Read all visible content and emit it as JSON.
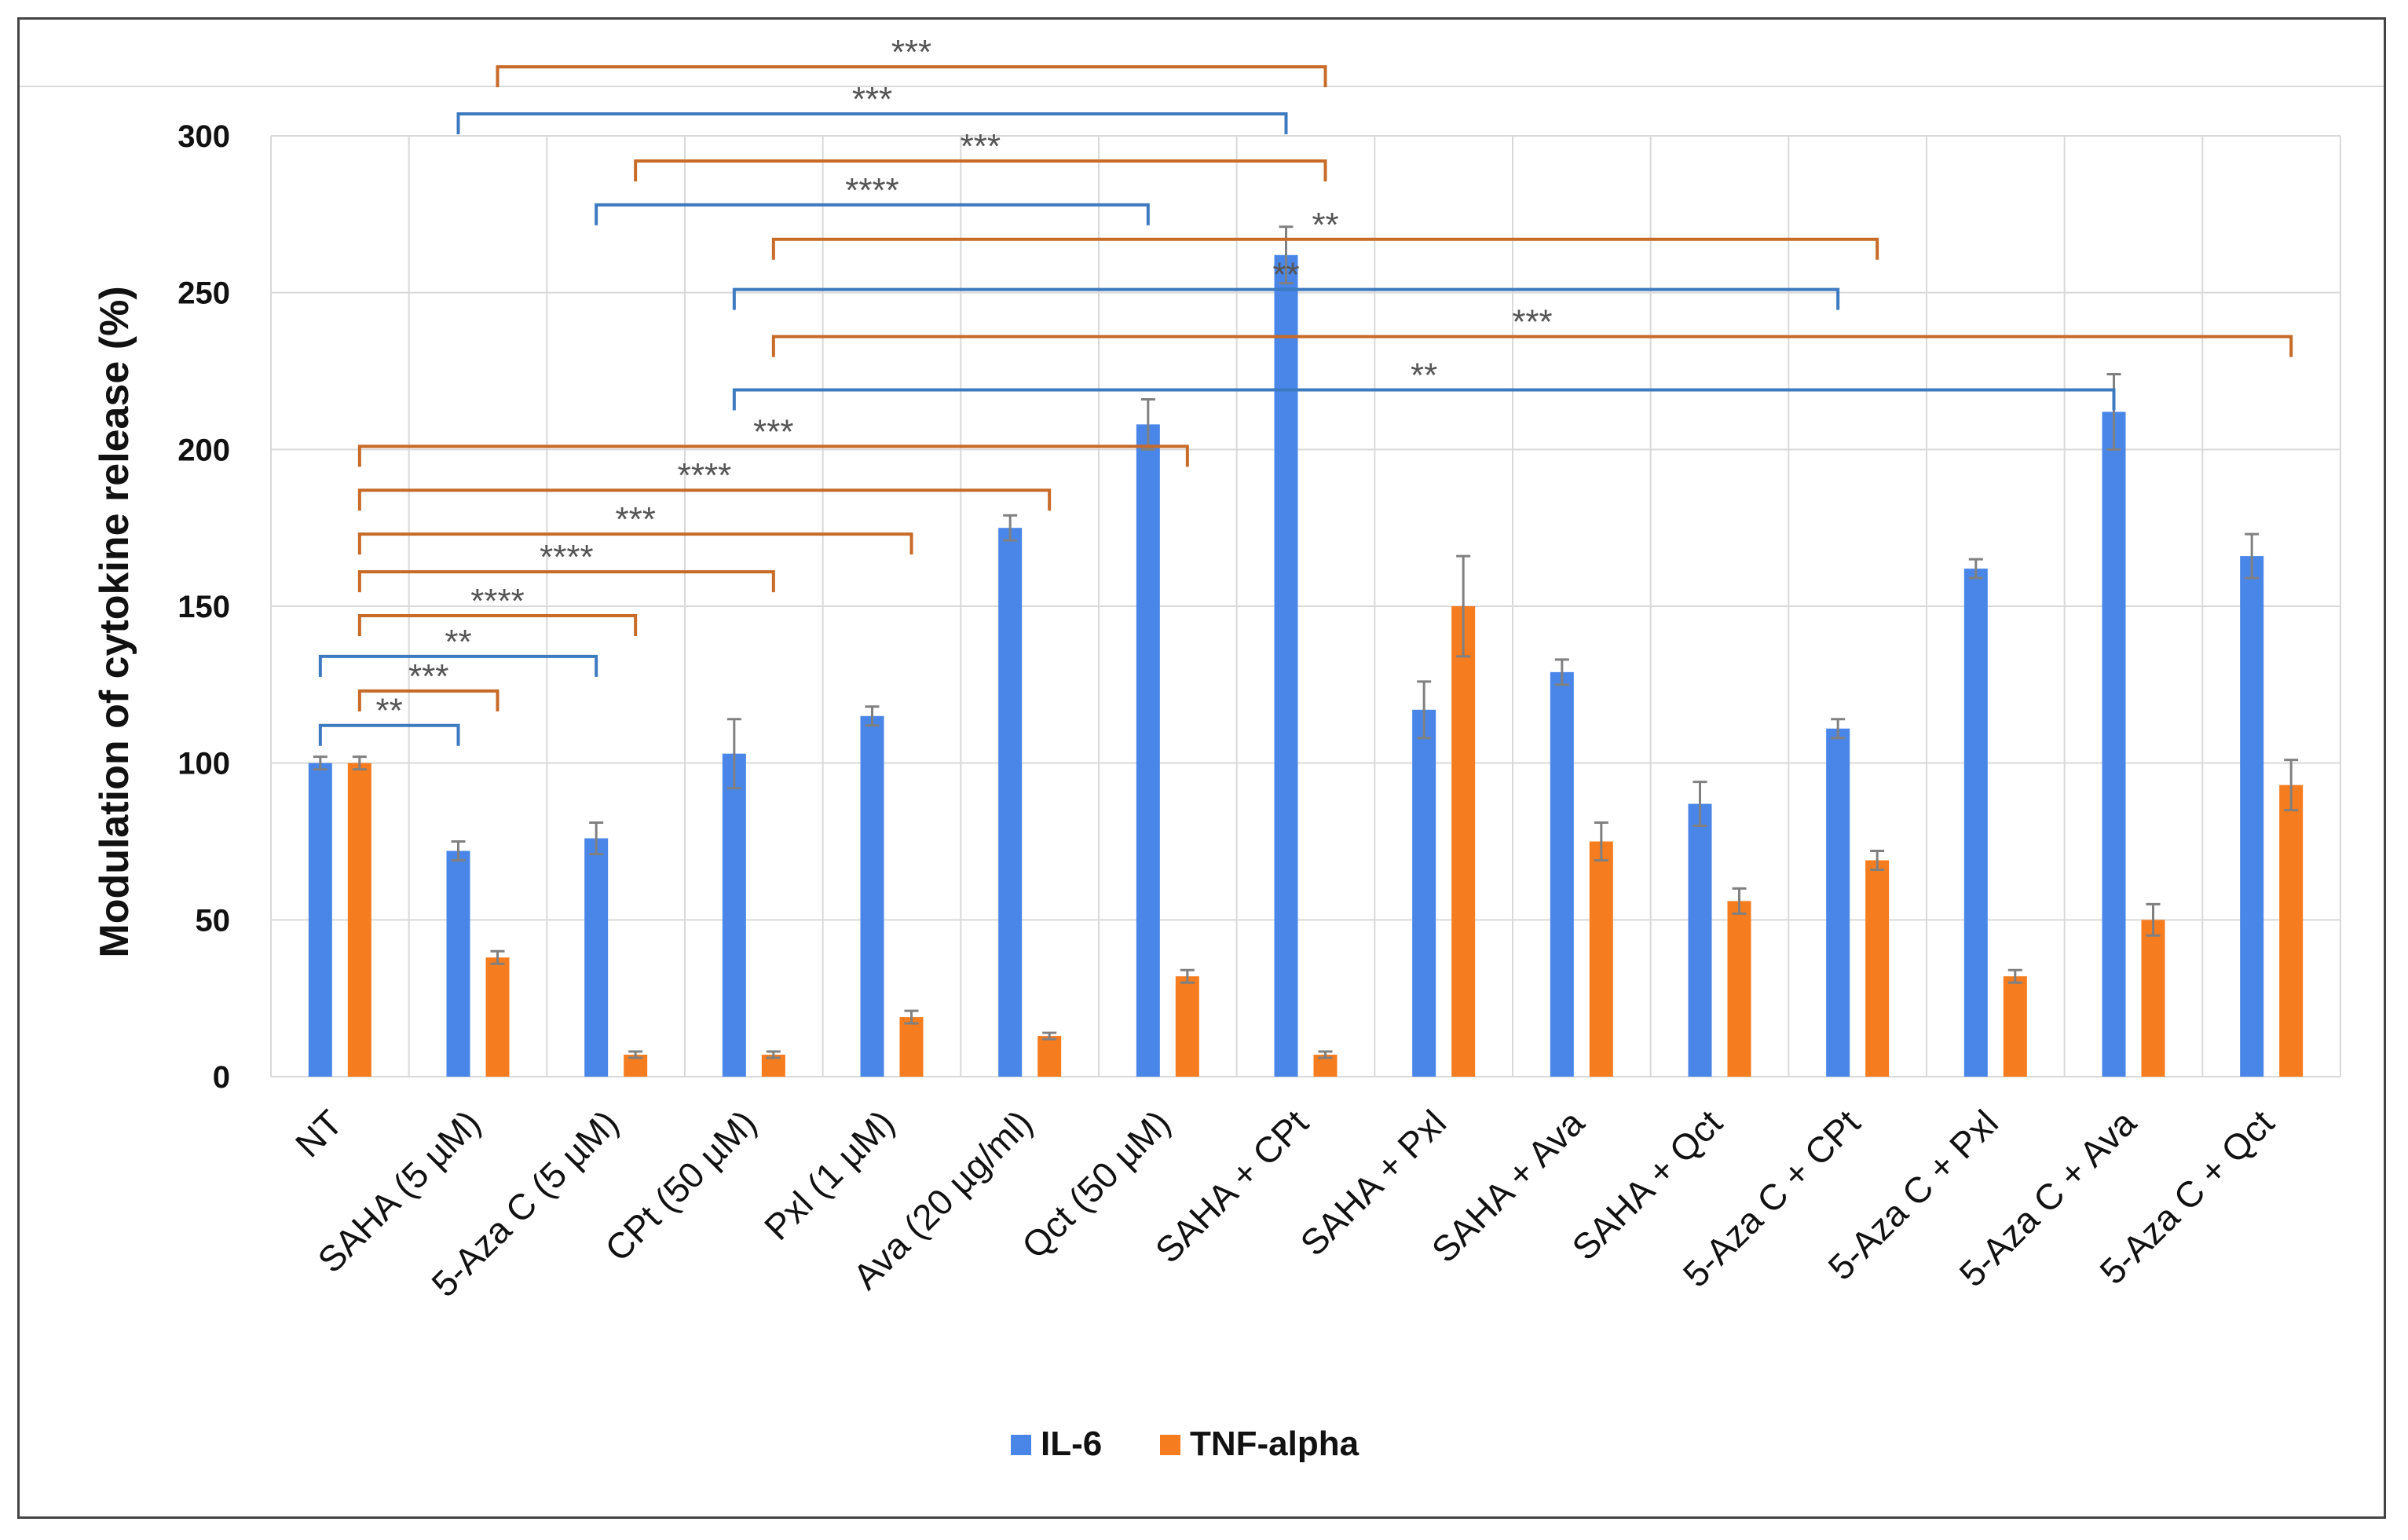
{
  "chart_data": {
    "type": "bar",
    "title": "",
    "xlabel": "",
    "ylabel": "Modulation of cytokine release (%)",
    "ylim": [
      0,
      300
    ],
    "yticks": [
      0,
      50,
      100,
      150,
      200,
      250,
      300
    ],
    "grid": true,
    "legend_position": "bottom-center",
    "categories": [
      "NT",
      "SAHA (5 µM)",
      "5-Aza C (5 µM)",
      "CPt (50 µM)",
      "Pxl (1 µM)",
      "Ava (20 µg/ml)",
      "Qct (50 µM)",
      "SAHA + CPt",
      "SAHA + Pxl",
      "SAHA + Ava",
      "SAHA + Qct",
      "5-Aza C + CPt",
      "5-Aza C + Pxl",
      "5-Aza C + Ava",
      "5-Aza C + Qct"
    ],
    "series": [
      {
        "name": "IL-6",
        "color": "#4A86E8",
        "values": [
          100,
          72,
          76,
          103,
          115,
          175,
          208,
          262,
          117,
          129,
          87,
          111,
          162,
          212,
          166
        ],
        "errors": [
          2,
          3,
          5,
          11,
          3,
          4,
          8,
          9,
          9,
          4,
          7,
          3,
          3,
          12,
          7
        ]
      },
      {
        "name": "TNF-alpha",
        "color": "#F57C1F",
        "values": [
          100,
          38,
          7,
          7,
          19,
          13,
          32,
          7,
          150,
          75,
          56,
          69,
          32,
          50,
          93
        ],
        "errors": [
          2,
          2,
          1,
          1,
          2,
          1,
          2,
          1,
          16,
          6,
          4,
          3,
          2,
          5,
          8
        ]
      }
    ],
    "significance": [
      {
        "label": "***",
        "series": "TNF-alpha",
        "from": 1,
        "to": 7,
        "level": 322
      },
      {
        "label": "***",
        "series": "IL-6",
        "from": 1,
        "to": 7,
        "level": 307
      },
      {
        "label": "***",
        "series": "TNF-alpha",
        "from": 2,
        "to": 7,
        "level": 292
      },
      {
        "label": "****",
        "series": "IL-6",
        "from": 2,
        "to": 6,
        "level": 278
      },
      {
        "label": "**",
        "series": "TNF-alpha",
        "from": 3,
        "to": 11,
        "level": 267
      },
      {
        "label": "**",
        "series": "IL-6",
        "from": 3,
        "to": 11,
        "level": 251
      },
      {
        "label": "***",
        "series": "TNF-alpha",
        "from": 3,
        "to": 14,
        "level": 236
      },
      {
        "label": "**",
        "series": "IL-6",
        "from": 3,
        "to": 13,
        "level": 219
      },
      {
        "label": "***",
        "series": "TNF-alpha",
        "from": 0,
        "to": 6,
        "level": 201
      },
      {
        "label": "****",
        "series": "TNF-alpha",
        "from": 0,
        "to": 5,
        "level": 187
      },
      {
        "label": "***",
        "series": "TNF-alpha",
        "from": 0,
        "to": 4,
        "level": 173
      },
      {
        "label": "****",
        "series": "TNF-alpha",
        "from": 0,
        "to": 3,
        "level": 161
      },
      {
        "label": "****",
        "series": "TNF-alpha",
        "from": 0,
        "to": 2,
        "level": 147
      },
      {
        "label": "**",
        "series": "IL-6",
        "from": 0,
        "to": 2,
        "level": 134
      },
      {
        "label": "***",
        "series": "TNF-alpha",
        "from": 0,
        "to": 1,
        "level": 123
      },
      {
        "label": "**",
        "series": "IL-6",
        "from": 0,
        "to": 1,
        "level": 112
      }
    ]
  }
}
